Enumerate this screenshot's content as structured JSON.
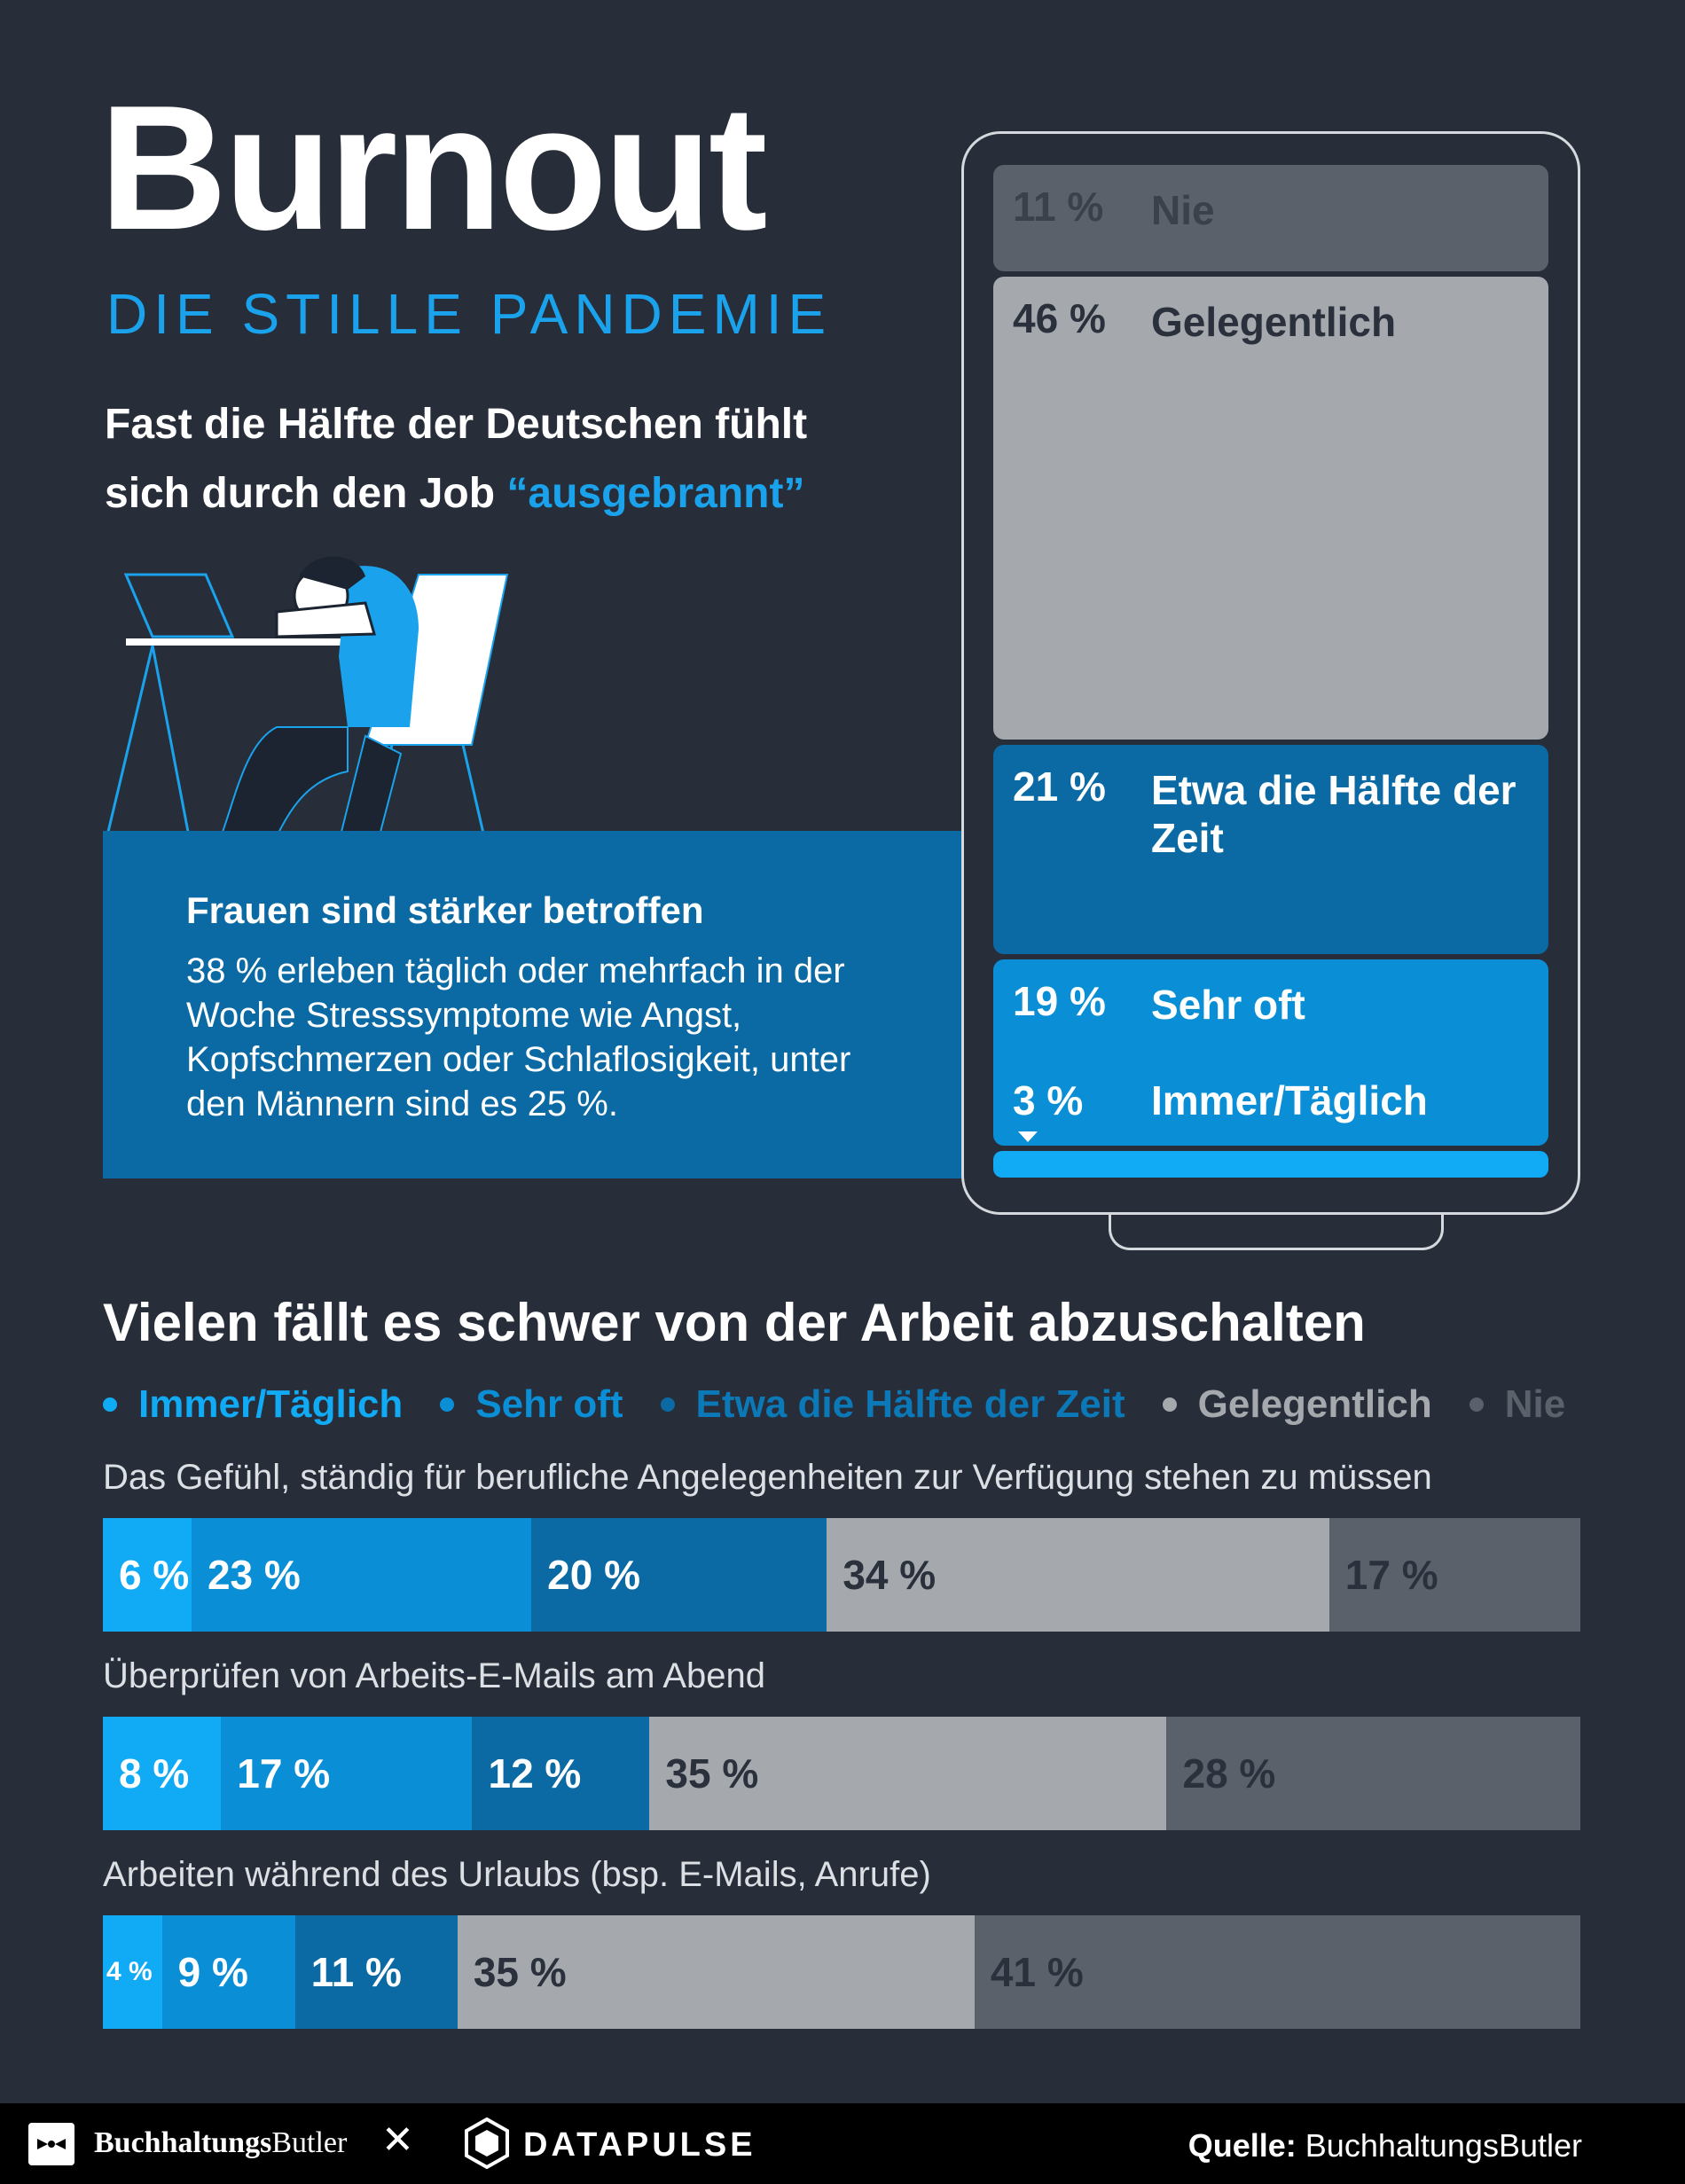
{
  "header": {
    "title": "Burnout",
    "subtitle": "DIE STILLE PANDEMIE",
    "intro_line1": "Fast die Hälfte der Deutschen fühlt",
    "intro_line2_a": "sich durch den Job ",
    "intro_line2_b": "“ausgebrannt”"
  },
  "women": {
    "title": "Frauen sind stärker betroffen",
    "text": "38 % erleben täglich oder mehrfach in der Woche Stresssymptome wie Angst, Kopfschmerzen oder Schlaflosigkeit, unter den Männern sind es 25 %."
  },
  "colors": {
    "immer": "#11aaf5",
    "oft": "#0a8fd6",
    "half": "#0b6aa3",
    "gel": "#a5a8ad",
    "nie": "#5a616a",
    "accent": "#1aa3ec",
    "background": "#272e39"
  },
  "chart_data": [
    {
      "type": "bar",
      "orientation": "stacked-vertical",
      "title": "Fast die Hälfte der Deutschen fühlt sich durch den Job “ausgebrannt”",
      "categories": [
        "Nie",
        "Gelegentlich",
        "Etwa die Hälfte der Zeit",
        "Sehr oft",
        "Immer/Täglich"
      ],
      "values": [
        11,
        46,
        21,
        19,
        3
      ],
      "labels": [
        "11 %",
        "46 %",
        "21 %",
        "19 %",
        "3 %"
      ],
      "unit": "%"
    },
    {
      "type": "bar",
      "orientation": "stacked-horizontal",
      "title": "Vielen fällt es schwer von der Arbeit abzuschalten",
      "legend": [
        "Immer/Täglich",
        "Sehr oft",
        "Etwa die Hälfte der Zeit",
        "Gelegentlich",
        "Nie"
      ],
      "categories": [
        "Das Gefühl, ständig für berufliche Angelegenheiten zur Verfügung stehen zu müssen",
        "Überprüfen von Arbeits-E-Mails am Abend",
        "Arbeiten während des Urlaubs (bsp. E-Mails, Anrufe)"
      ],
      "series": [
        {
          "name": "Immer/Täglich",
          "values": [
            6,
            8,
            4
          ],
          "labels": [
            "6 %",
            "8 %",
            "4 %"
          ]
        },
        {
          "name": "Sehr oft",
          "values": [
            23,
            17,
            9
          ],
          "labels": [
            "23 %",
            "17 %",
            "9 %"
          ]
        },
        {
          "name": "Etwa die Hälfte der Zeit",
          "values": [
            20,
            12,
            11
          ],
          "labels": [
            "20 %",
            "12 %",
            "11 %"
          ]
        },
        {
          "name": "Gelegentlich",
          "values": [
            34,
            35,
            35
          ],
          "labels": [
            "34 %",
            "35 %",
            "35 %"
          ]
        },
        {
          "name": "Nie",
          "values": [
            17,
            28,
            41
          ],
          "labels": [
            "17 %",
            "28 %",
            "41 %"
          ]
        }
      ],
      "unit": "%"
    }
  ],
  "footer": {
    "brand1_bold": "Buchhaltungs",
    "brand1_rest": "Butler",
    "cross": "✕",
    "brand2": "DATAPULSE",
    "source_label": "Quelle:",
    "source_value": " BuchhaltungsButler"
  }
}
